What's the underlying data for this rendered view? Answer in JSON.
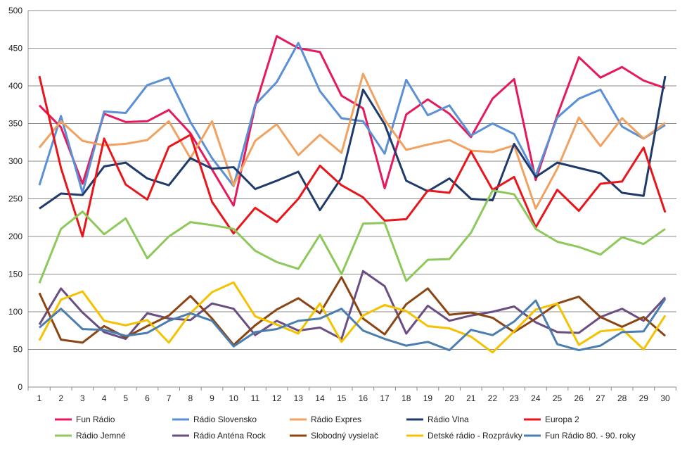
{
  "chart_data": {
    "type": "line",
    "title": "",
    "xlabel": "",
    "ylabel": "",
    "ylim": [
      0,
      500
    ],
    "yticks": [
      0,
      50,
      100,
      150,
      200,
      250,
      300,
      350,
      400,
      450,
      500
    ],
    "x": [
      1,
      2,
      3,
      4,
      5,
      6,
      7,
      8,
      9,
      10,
      11,
      12,
      13,
      14,
      15,
      16,
      17,
      18,
      19,
      20,
      21,
      22,
      23,
      24,
      25,
      26,
      27,
      28,
      29,
      30
    ],
    "grid": "horizontal",
    "legend_position": "bottom",
    "series": [
      {
        "name": "Fun Rádio",
        "color": "#E6195A",
        "values": [
          374,
          345,
          270,
          363,
          352,
          353,
          368,
          337,
          289,
          241,
          373,
          466,
          450,
          445,
          387,
          370,
          264,
          362,
          382,
          363,
          332,
          383,
          409,
          275,
          361,
          438,
          411,
          425,
          407,
          397
        ]
      },
      {
        "name": "Rádio Slovensko",
        "color": "#5B8FD6",
        "values": [
          268,
          360,
          258,
          366,
          364,
          401,
          411,
          352,
          304,
          267,
          375,
          405,
          457,
          393,
          357,
          353,
          310,
          408,
          361,
          374,
          334,
          350,
          336,
          281,
          358,
          383,
          395,
          346,
          330,
          348
        ]
      },
      {
        "name": "Rádio Expres",
        "color": "#F1A160",
        "values": [
          318,
          353,
          327,
          321,
          323,
          328,
          353,
          304,
          353,
          268,
          327,
          349,
          308,
          335,
          311,
          416,
          355,
          315,
          322,
          328,
          314,
          312,
          321,
          237,
          290,
          358,
          320,
          357,
          330,
          351
        ]
      },
      {
        "name": "Rádio Vlna",
        "color": "#1F3A6B",
        "values": [
          237,
          257,
          255,
          293,
          298,
          277,
          268,
          304,
          290,
          292,
          263,
          274,
          286,
          235,
          278,
          395,
          349,
          274,
          260,
          277,
          250,
          248,
          323,
          279,
          298,
          291,
          284,
          258,
          254,
          413
        ]
      },
      {
        "name": "Europa 2",
        "color": "#E8151B",
        "values": [
          413,
          291,
          200,
          330,
          269,
          249,
          319,
          335,
          246,
          204,
          238,
          219,
          250,
          294,
          268,
          252,
          221,
          223,
          261,
          258,
          313,
          262,
          279,
          212,
          262,
          234,
          270,
          273,
          318,
          232
        ]
      },
      {
        "name": "Rádio Jemné",
        "color": "#8DC85A",
        "values": [
          138,
          210,
          233,
          203,
          224,
          171,
          200,
          219,
          215,
          210,
          181,
          166,
          157,
          202,
          150,
          217,
          218,
          141,
          169,
          170,
          205,
          261,
          256,
          210,
          193,
          186,
          176,
          199,
          190,
          210
        ]
      },
      {
        "name": "Rádio Anténa Rock",
        "color": "#6A4E83",
        "values": [
          83,
          131,
          99,
          73,
          64,
          98,
          91,
          89,
          111,
          104,
          69,
          88,
          75,
          79,
          64,
          154,
          134,
          71,
          108,
          88,
          95,
          100,
          107,
          86,
          73,
          72,
          93,
          104,
          88,
          119
        ]
      },
      {
        "name": "Slobodný vysielač",
        "color": "#8B4513",
        "values": [
          125,
          63,
          59,
          81,
          66,
          81,
          95,
          121,
          91,
          56,
          82,
          103,
          118,
          98,
          146,
          91,
          70,
          110,
          131,
          96,
          99,
          92,
          73,
          91,
          111,
          120,
          93,
          80,
          93,
          68
        ]
      },
      {
        "name": "Detské rádio - Rozprávky",
        "color": "#F4C200",
        "values": [
          62,
          116,
          127,
          88,
          82,
          89,
          59,
          98,
          126,
          139,
          94,
          83,
          71,
          111,
          60,
          95,
          109,
          101,
          81,
          78,
          67,
          46,
          74,
          103,
          111,
          56,
          74,
          77,
          50,
          95
        ]
      },
      {
        "name": "Fun Rádio 80. - 90. roky",
        "color": "#4A7DB0",
        "values": [
          79,
          104,
          77,
          76,
          68,
          72,
          88,
          98,
          88,
          54,
          73,
          77,
          88,
          91,
          104,
          75,
          64,
          55,
          60,
          49,
          76,
          69,
          87,
          115,
          57,
          49,
          55,
          73,
          74,
          117
        ]
      }
    ]
  }
}
